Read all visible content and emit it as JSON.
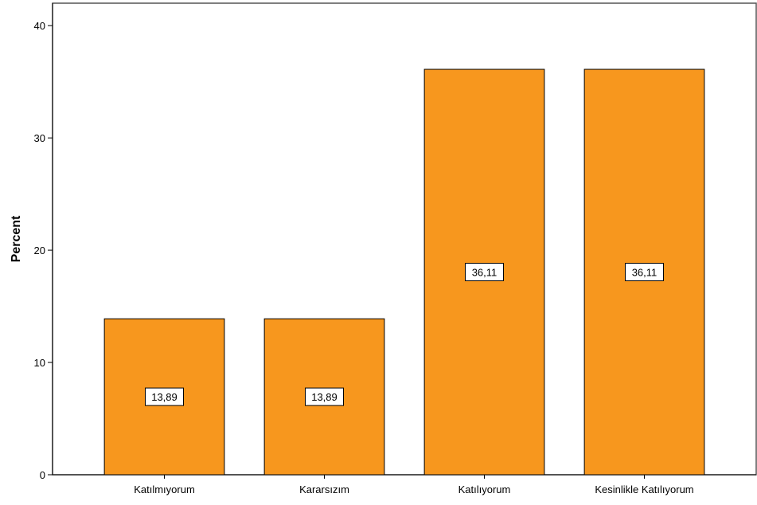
{
  "chart_data": {
    "type": "bar",
    "categories": [
      "Katılmıyorum",
      "Kararsızım",
      "Katılıyorum",
      "Kesinlikle Katılıyorum"
    ],
    "values": [
      13.89,
      13.89,
      36.11,
      36.11
    ],
    "data_labels": [
      "13,89",
      "13,89",
      "36,11",
      "36,11"
    ],
    "ylabel": "Percent",
    "xlabel": "",
    "ylim": [
      0,
      42
    ],
    "yticks": [
      0,
      10,
      20,
      30,
      40
    ],
    "grid": false,
    "bar_color": "#F7971E",
    "bar_edge_color": "#000000"
  }
}
